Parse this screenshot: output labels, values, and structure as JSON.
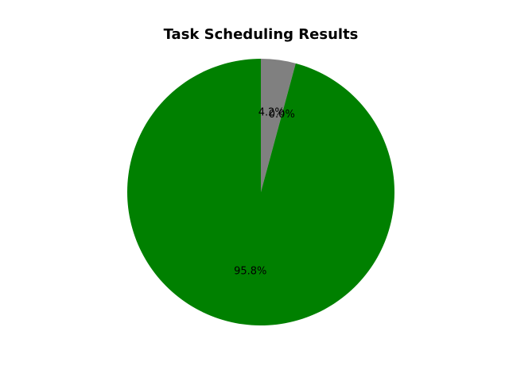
{
  "chart_data": {
    "type": "pie",
    "title": "Task Scheduling Results",
    "start_angle_deg": 90,
    "direction": "clockwise",
    "slices": [
      {
        "value": 4.2,
        "label": "4.2%",
        "color": "#808080"
      },
      {
        "value": 0.0,
        "label": "0.0%",
        "color": "#FF0000"
      },
      {
        "value": 95.8,
        "label": "95.8%",
        "color": "#008000"
      }
    ],
    "legend": "none",
    "grid": false
  }
}
